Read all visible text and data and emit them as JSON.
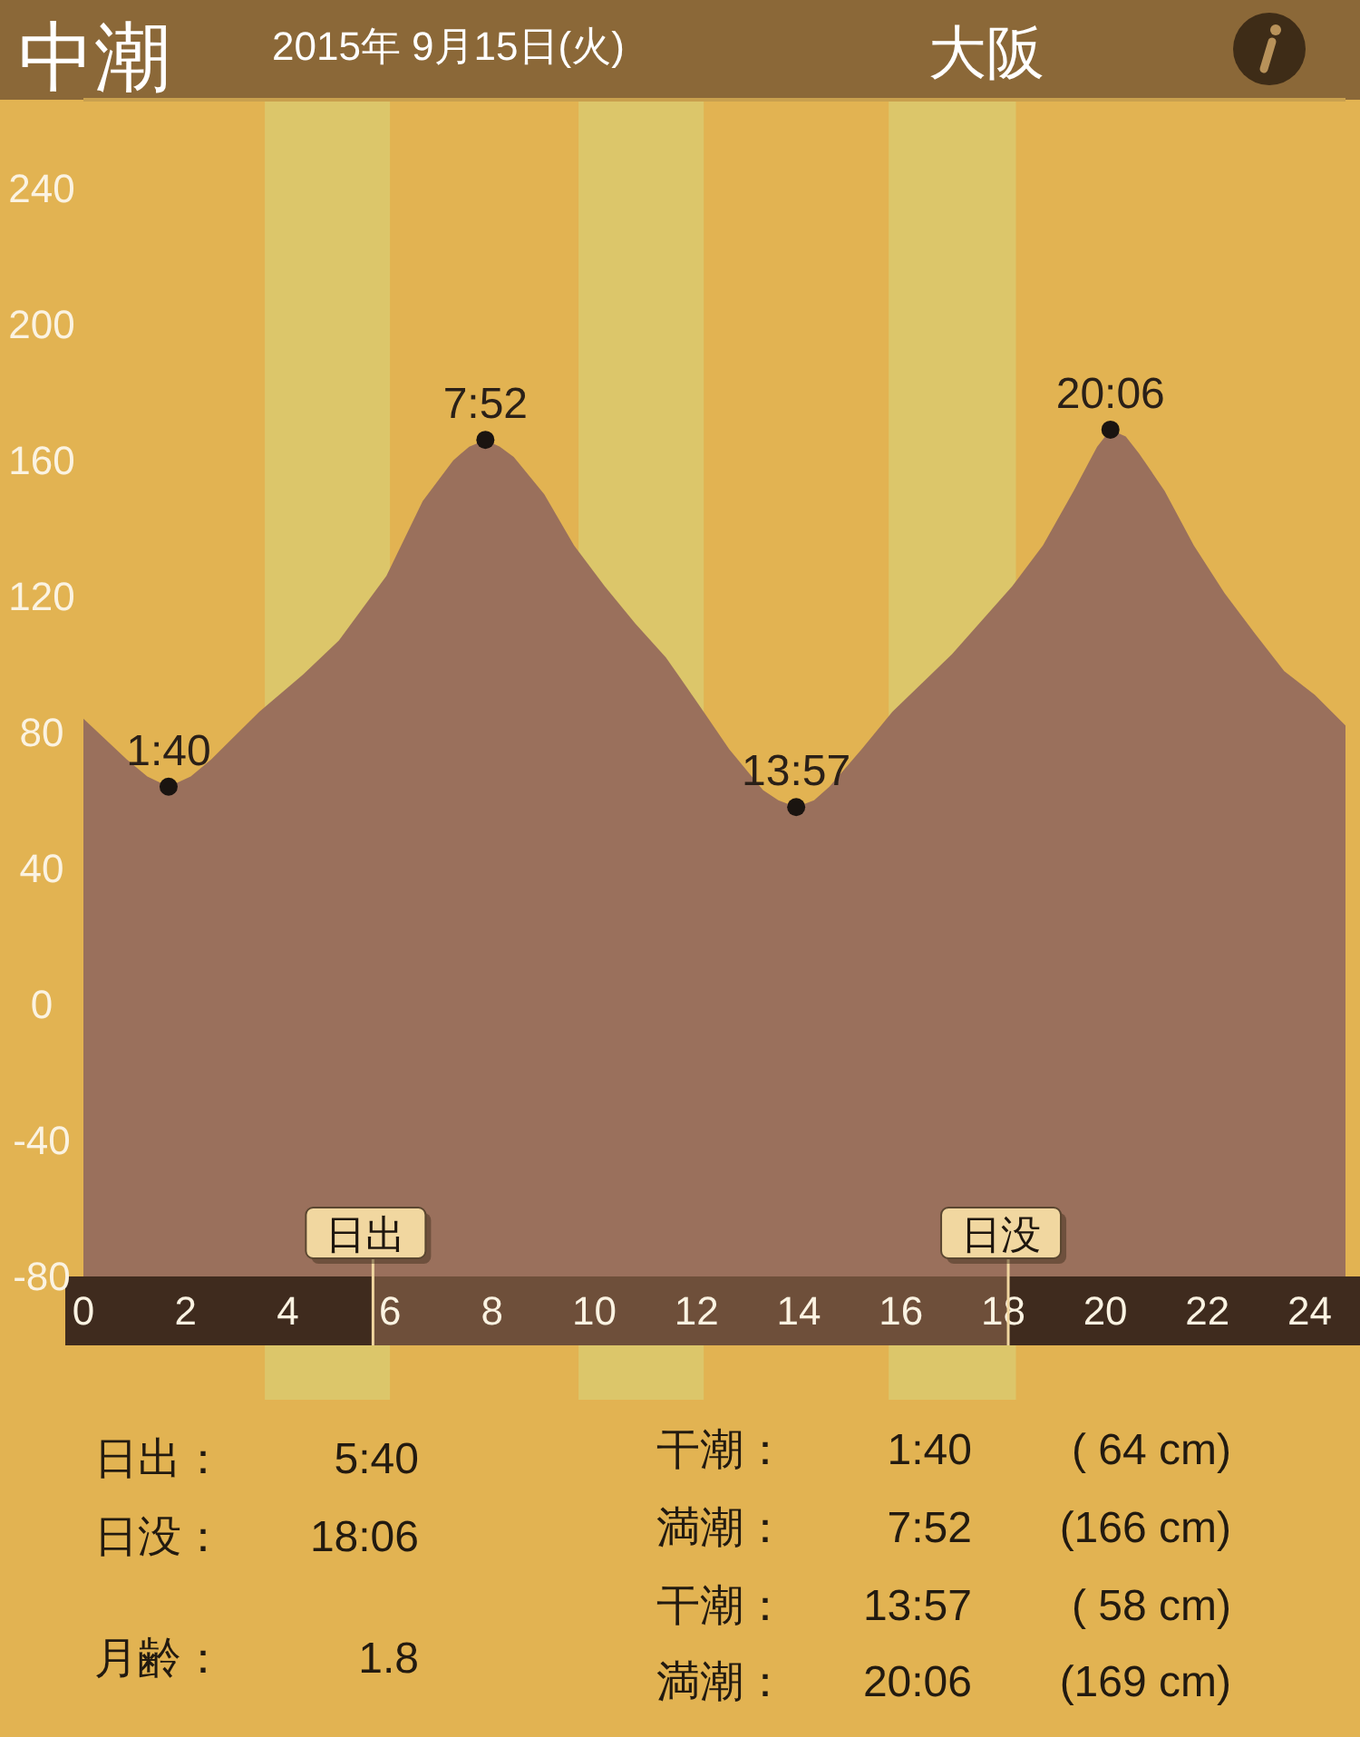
{
  "chart_data": {
    "type": "area",
    "title": "中潮",
    "subtitle": "2015年 9月15日(火)",
    "series": [
      {
        "type": "area",
        "color": "#9a705c",
        "x": [
          0,
          0.85,
          1.25,
          1.667,
          2.1,
          2.5,
          3.44,
          4.3,
          5.0,
          5.93,
          6.64,
          7.24,
          7.55,
          7.867,
          8.15,
          8.42,
          9.02,
          9.6,
          10.2,
          10.8,
          11.4,
          11.68,
          12.14,
          12.64,
          13.3,
          13.6,
          13.95,
          14.3,
          14.6,
          15.23,
          15.83,
          17.0,
          18.18,
          18.78,
          19.38,
          19.84,
          20.1,
          20.4,
          20.66,
          21.16,
          21.73,
          22.33,
          22.93,
          23.5,
          24.1,
          24.7
        ],
        "values": [
          84,
          72,
          67,
          64,
          67,
          72,
          86,
          97,
          107,
          126,
          148,
          160,
          164,
          166,
          164,
          161,
          150,
          135,
          123,
          112,
          102,
          96,
          86,
          75,
          63,
          60,
          58,
          60,
          64,
          75,
          86,
          103,
          123,
          135,
          151,
          164,
          169,
          167,
          162,
          151,
          135,
          121,
          109,
          98,
          91,
          82
        ]
      },
      {
        "type": "scatter",
        "color": "#1a1410",
        "marker": "circle",
        "x": [
          1.667,
          7.867,
          13.95,
          20.1
        ],
        "values": [
          64,
          166,
          58,
          169
        ]
      }
    ],
    "xlim": [
      0,
      24.7
    ],
    "xticks": [
      0,
      2,
      4,
      6,
      8,
      10,
      12,
      14,
      16,
      18,
      20,
      22,
      24
    ],
    "ylim": [
      -80,
      266
    ],
    "yticks": [
      -80,
      -40,
      0,
      40,
      80,
      120,
      160,
      200,
      240
    ],
    "bands": [
      {
        "axis": "x",
        "from": 3.55,
        "to": 6.0,
        "color": "#dcc66a"
      },
      {
        "axis": "x",
        "from": 9.69,
        "to": 12.14,
        "color": "#dcc66a"
      },
      {
        "axis": "x",
        "from": 15.76,
        "to": 18.25,
        "color": "#dcc66a"
      },
      {
        "axis": "y",
        "from": -80,
        "to": 0,
        "color": "#9a705c"
      }
    ],
    "ref_lines": [
      {
        "axis": "x",
        "value": 5.667,
        "label": "日出"
      },
      {
        "axis": "x",
        "value": 18.1,
        "label": "日没"
      }
    ],
    "annotations": [
      "大阪",
      {
        "text": "1:40",
        "x": 1.667,
        "y": 64
      },
      {
        "text": "7:52",
        "x": 7.867,
        "y": 166
      },
      {
        "text": "13:57",
        "x": 13.95,
        "y": 58
      },
      {
        "text": "20:06",
        "x": 20.1,
        "y": 169
      },
      "日出：",
      "5:40",
      "日没：",
      "18:06",
      "月齢：",
      "1.8",
      "干潮：",
      "1:40",
      "( 64 cm)",
      "満潮：",
      "7:52",
      "(166 cm)",
      "干潮：",
      "13:57",
      "( 58 cm)",
      "満潮：",
      "20:06",
      "(169 cm)"
    ]
  }
}
